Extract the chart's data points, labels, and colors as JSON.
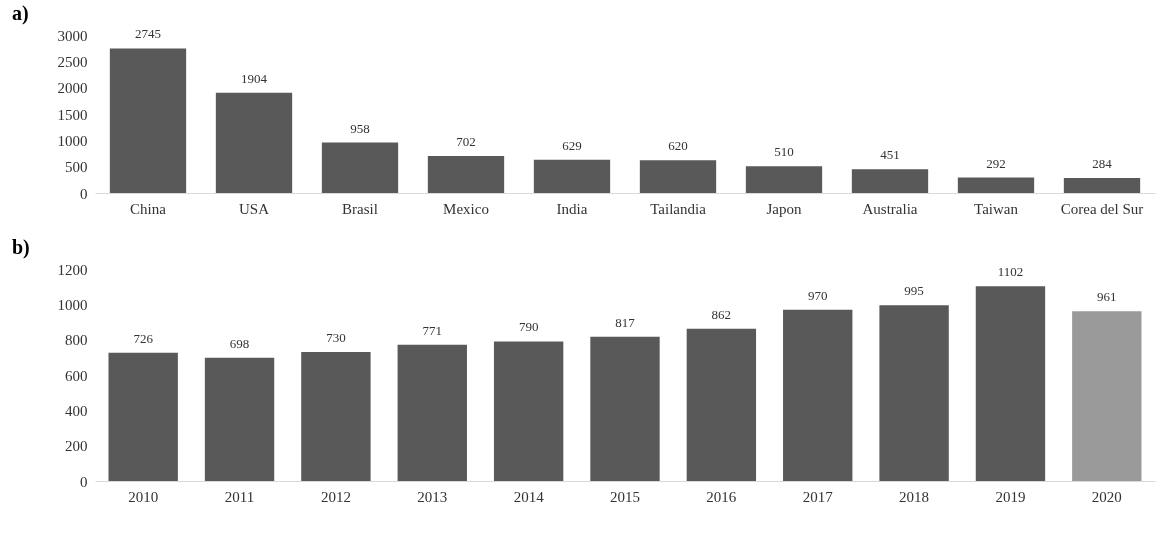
{
  "chart_data": [
    {
      "type": "bar",
      "title": "a)",
      "categories": [
        "China",
        "USA",
        "Brasil",
        "Mexico",
        "India",
        "Tailandia",
        "Japon",
        "Australia",
        "Taiwan",
        "Corea del Sur"
      ],
      "values": [
        2745,
        1904,
        958,
        702,
        629,
        620,
        510,
        451,
        292,
        284
      ],
      "color": "#595959",
      "data_labels": true,
      "ylim": [
        0,
        3000
      ],
      "yticks": [
        0,
        500,
        1000,
        1500,
        2000,
        2500,
        3000
      ]
    },
    {
      "type": "bar",
      "title": "b)",
      "categories": [
        "2010",
        "2011",
        "2012",
        "2013",
        "2014",
        "2015",
        "2016",
        "2017",
        "2018",
        "2019",
        "2020"
      ],
      "values": [
        726,
        698,
        730,
        771,
        790,
        817,
        862,
        970,
        995,
        1102,
        961
      ],
      "colors": [
        "#595959",
        "#595959",
        "#595959",
        "#595959",
        "#595959",
        "#595959",
        "#595959",
        "#595959",
        "#595959",
        "#595959",
        "#9a9a9a"
      ],
      "data_labels": true,
      "ylim": [
        0,
        1200
      ],
      "yticks": [
        0,
        200,
        400,
        600,
        800,
        1000,
        1200
      ]
    }
  ]
}
